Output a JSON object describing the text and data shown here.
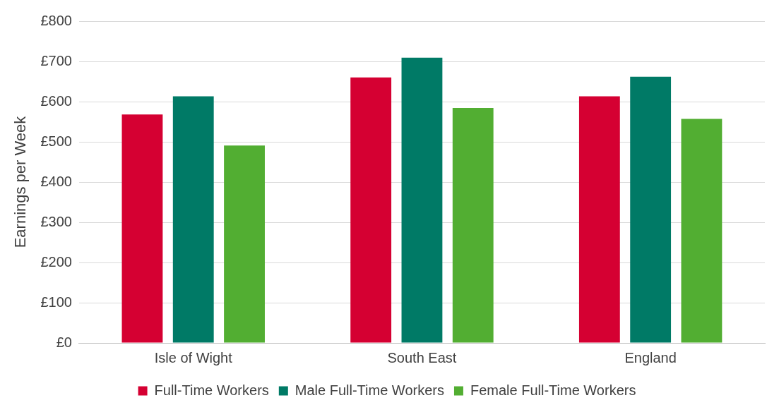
{
  "chart_data": {
    "type": "bar",
    "ylabel": "Earnings per Week",
    "categories": [
      "Isle of Wight",
      "South East",
      "England"
    ],
    "series": [
      {
        "name": "Full-Time Workers",
        "color": "#d50032",
        "values": [
          568,
          660,
          613
        ]
      },
      {
        "name": "Male Full-Time Workers",
        "color": "#007a66",
        "values": [
          613,
          709,
          662
        ]
      },
      {
        "name": "Female Full-Time Workers",
        "color": "#52ae32",
        "values": [
          491,
          584,
          557
        ]
      }
    ],
    "ylim": [
      0,
      800
    ],
    "yticks": [
      {
        "value": 0,
        "label": "£0"
      },
      {
        "value": 100,
        "label": "£100"
      },
      {
        "value": 200,
        "label": "£200"
      },
      {
        "value": 300,
        "label": "£300"
      },
      {
        "value": 400,
        "label": "£400"
      },
      {
        "value": 500,
        "label": "£500"
      },
      {
        "value": 600,
        "label": "£600"
      },
      {
        "value": 700,
        "label": "£700"
      },
      {
        "value": 800,
        "label": "£800"
      }
    ],
    "grid": "y",
    "legend": "bottom"
  }
}
